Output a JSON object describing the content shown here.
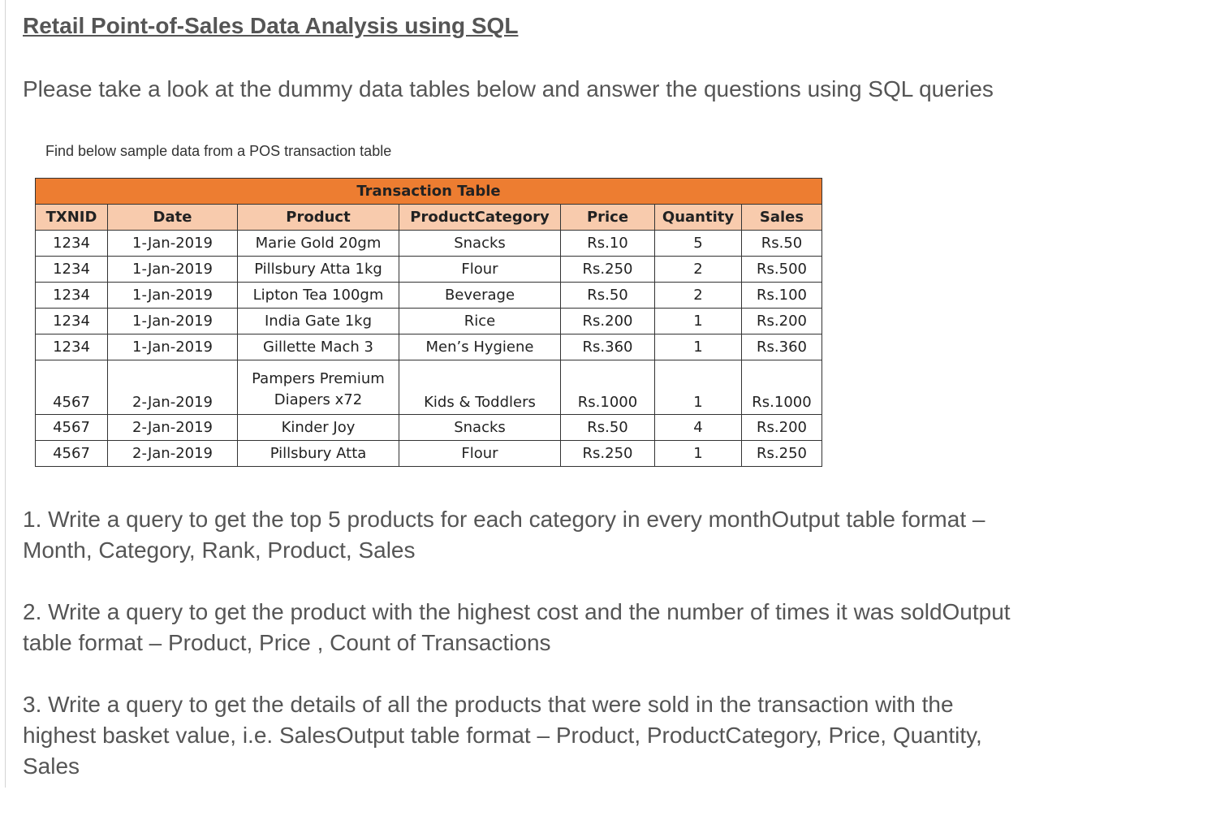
{
  "page": {
    "title": "Retail Point-of-Sales Data Analysis using SQL",
    "intro": "Please take a look at the dummy data tables below and answer the questions using SQL queries",
    "caption": "Find below sample data from a POS transaction table"
  },
  "table": {
    "title": "Transaction Table",
    "headers": [
      "TXNID",
      "Date",
      "Product",
      "ProductCategory",
      "Price",
      "Quantity",
      "Sales"
    ],
    "rows": [
      [
        "1234",
        "1-Jan-2019",
        "Marie Gold 20gm",
        "Snacks",
        "Rs.10",
        "5",
        "Rs.50"
      ],
      [
        "1234",
        "1-Jan-2019",
        "Pillsbury Atta 1kg",
        "Flour",
        "Rs.250",
        "2",
        "Rs.500"
      ],
      [
        "1234",
        "1-Jan-2019",
        "Lipton Tea 100gm",
        "Beverage",
        "Rs.50",
        "2",
        "Rs.100"
      ],
      [
        "1234",
        "1-Jan-2019",
        "India Gate 1kg",
        "Rice",
        "Rs.200",
        "1",
        "Rs.200"
      ],
      [
        "1234",
        "1-Jan-2019",
        "Gillette Mach 3",
        "Men’s Hygiene",
        "Rs.360",
        "1",
        "Rs.360"
      ],
      [
        "4567",
        "2-Jan-2019",
        "Pampers Premium Diapers x72",
        "Kids & Toddlers",
        "Rs.1000",
        "1",
        "Rs.1000"
      ],
      [
        "4567",
        "2-Jan-2019",
        "Kinder Joy",
        "Snacks",
        "Rs.50",
        "4",
        "Rs.200"
      ],
      [
        "4567",
        "2-Jan-2019",
        "Pillsbury Atta",
        "Flour",
        "Rs.250",
        "1",
        "Rs.250"
      ]
    ],
    "wrapped_product": {
      "line1": "Pampers Premium",
      "line2": "Diapers x72"
    }
  },
  "questions": [
    {
      "line1": "1. Write a query to get the top 5 products for each category in every monthOutput table format –",
      "line2": "Month, Category, Rank, Product, Sales"
    },
    {
      "line1": "2. Write a query to get the product with the highest cost and the number of times it was soldOutput",
      "line2": "table format – Product, Price , Count of Transactions"
    },
    {
      "line1": "3. Write a query to get the details of all the products that were sold in the transaction with the",
      "line2": "highest basket value, i.e. SalesOutput table format – Product, ProductCategory, Price, Quantity,",
      "line3": "Sales"
    }
  ]
}
